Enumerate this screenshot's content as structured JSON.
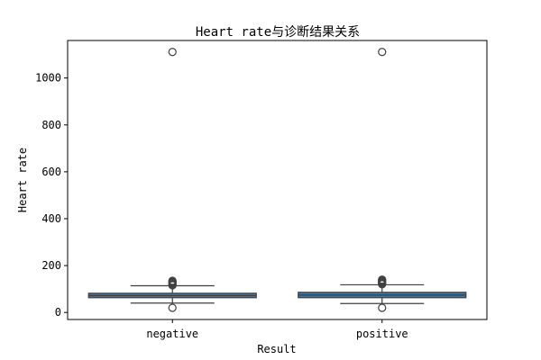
{
  "chart_data": {
    "type": "box",
    "title": "Heart rate与诊断结果关系",
    "xlabel": "Result",
    "ylabel": "Heart rate",
    "categories": [
      "negative",
      "positive"
    ],
    "ylim": [
      -30,
      1160
    ],
    "yticks": [
      0,
      200,
      400,
      600,
      800,
      1000
    ],
    "grid": false,
    "box_color": "#3a75a8",
    "series": [
      {
        "category": "negative",
        "whisker_low": 40,
        "q1": 63,
        "median": 72,
        "q3": 82,
        "whisker_high": 114,
        "outliers": [
          20,
          116,
          120,
          124,
          128,
          132,
          135,
          1111
        ]
      },
      {
        "category": "positive",
        "whisker_low": 38,
        "q1": 63,
        "median": 74,
        "q3": 86,
        "whisker_high": 118,
        "outliers": [
          20,
          120,
          124,
          128,
          132,
          136,
          140,
          1111
        ]
      }
    ]
  }
}
